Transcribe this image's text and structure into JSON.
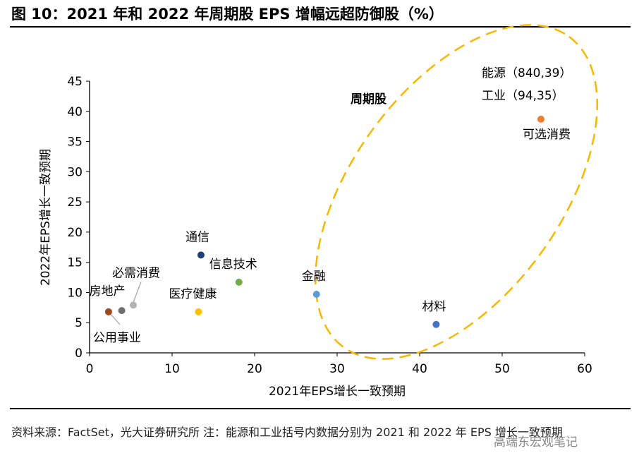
{
  "title": "图 10：2021 年和 2022 年周期股 EPS 增幅远超防御股（%）",
  "chart_data": {
    "type": "scatter",
    "xlabel": "2021年EPS增长一致预期",
    "ylabel": "2022年EPS增长一致预期",
    "xlim": [
      0,
      60
    ],
    "ylim": [
      0,
      45
    ],
    "xticks": [
      0,
      10,
      20,
      30,
      40,
      50,
      60
    ],
    "yticks": [
      0,
      5,
      10,
      15,
      20,
      25,
      30,
      35,
      40,
      45
    ],
    "grid": false,
    "points": [
      {
        "label": "公用事业",
        "x": 2.3,
        "y": 6.8,
        "color": "#9e4a1e"
      },
      {
        "label": "房地产",
        "x": 3.9,
        "y": 7.0,
        "color": "#6e6e6e"
      },
      {
        "label": "必需消费",
        "x": 5.3,
        "y": 7.9,
        "color": "#b3b3b3"
      },
      {
        "label": "医疗健康",
        "x": 13.2,
        "y": 6.8,
        "color": "#ffc000"
      },
      {
        "label": "通信",
        "x": 13.5,
        "y": 16.2,
        "color": "#203f7a"
      },
      {
        "label": "信息技术",
        "x": 18.1,
        "y": 11.7,
        "color": "#70ad47"
      },
      {
        "label": "金融",
        "x": 27.5,
        "y": 9.7,
        "color": "#5b9bd5"
      },
      {
        "label": "材料",
        "x": 42.0,
        "y": 4.7,
        "color": "#4472c4"
      },
      {
        "label": "可选消费",
        "x": 54.7,
        "y": 38.7,
        "color": "#ed7d31"
      }
    ],
    "annotations": [
      "周期股",
      "能源（840,39）",
      "工业（94,35）"
    ],
    "group_outline_color": "#f5b800"
  },
  "footer": "资料来源：FactSet，光大证券研究所 注：能源和工业括号内数据分别为 2021 和 2022 年 EPS 增长一致预期",
  "watermark": "高端东宏观笔记"
}
